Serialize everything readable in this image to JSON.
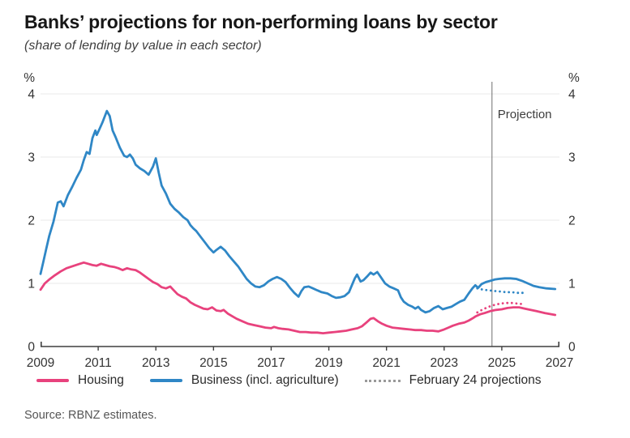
{
  "title": "Banks’ projections for non-performing loans by sector",
  "subtitle": "(share of lending by value in each sector)",
  "source": "Source: RBNZ estimates.",
  "projection_label": "Projection",
  "legend": [
    {
      "label": "Housing",
      "color": "#e8427d",
      "style": "solid"
    },
    {
      "label": "Business (incl. agriculture)",
      "color": "#2f87c6",
      "style": "solid"
    },
    {
      "label": "February 24 projections",
      "color": "#999999",
      "style": "dotted"
    }
  ],
  "colors": {
    "housing": "#e8427d",
    "business": "#2f87c6",
    "gridline": "#e8e8e8",
    "axis": "#3f3f3f",
    "projection_line": "#6e6e6e"
  },
  "chart_data": {
    "type": "line",
    "title": "Banks’ projections for non-performing loans by sector",
    "subtitle": "(share of lending by value in each sector)",
    "ylabel": "%",
    "ylabel_right": "%",
    "ylim": [
      0,
      4
    ],
    "yticks": [
      0,
      1,
      2,
      3,
      4
    ],
    "xlim": [
      2009,
      2027
    ],
    "xticks": [
      2009,
      2011,
      2013,
      2015,
      2017,
      2019,
      2021,
      2023,
      2025,
      2027
    ],
    "grid": true,
    "legend_position": "bottom",
    "projection_start": 2024.66,
    "series": [
      {
        "name": "Business (incl. agriculture)",
        "color": "#2f87c6",
        "style": "solid",
        "points": [
          [
            2009.0,
            1.15
          ],
          [
            2009.1,
            1.35
          ],
          [
            2009.2,
            1.55
          ],
          [
            2009.3,
            1.75
          ],
          [
            2009.45,
            1.98
          ],
          [
            2009.6,
            2.28
          ],
          [
            2009.7,
            2.3
          ],
          [
            2009.8,
            2.22
          ],
          [
            2009.95,
            2.4
          ],
          [
            2010.1,
            2.53
          ],
          [
            2010.25,
            2.67
          ],
          [
            2010.4,
            2.8
          ],
          [
            2010.5,
            2.95
          ],
          [
            2010.6,
            3.08
          ],
          [
            2010.7,
            3.05
          ],
          [
            2010.8,
            3.3
          ],
          [
            2010.9,
            3.42
          ],
          [
            2010.95,
            3.35
          ],
          [
            2011.05,
            3.45
          ],
          [
            2011.15,
            3.55
          ],
          [
            2011.3,
            3.73
          ],
          [
            2011.4,
            3.65
          ],
          [
            2011.5,
            3.42
          ],
          [
            2011.6,
            3.32
          ],
          [
            2011.75,
            3.15
          ],
          [
            2011.9,
            3.02
          ],
          [
            2012.0,
            3.0
          ],
          [
            2012.1,
            3.04
          ],
          [
            2012.2,
            2.98
          ],
          [
            2012.3,
            2.88
          ],
          [
            2012.45,
            2.82
          ],
          [
            2012.6,
            2.78
          ],
          [
            2012.75,
            2.72
          ],
          [
            2012.9,
            2.85
          ],
          [
            2013.0,
            2.98
          ],
          [
            2013.1,
            2.75
          ],
          [
            2013.2,
            2.55
          ],
          [
            2013.35,
            2.42
          ],
          [
            2013.5,
            2.26
          ],
          [
            2013.65,
            2.18
          ],
          [
            2013.8,
            2.12
          ],
          [
            2013.95,
            2.05
          ],
          [
            2014.1,
            2.0
          ],
          [
            2014.2,
            1.92
          ],
          [
            2014.3,
            1.87
          ],
          [
            2014.4,
            1.83
          ],
          [
            2014.55,
            1.74
          ],
          [
            2014.7,
            1.65
          ],
          [
            2014.85,
            1.56
          ],
          [
            2015.0,
            1.49
          ],
          [
            2015.1,
            1.53
          ],
          [
            2015.25,
            1.58
          ],
          [
            2015.4,
            1.52
          ],
          [
            2015.55,
            1.43
          ],
          [
            2015.7,
            1.35
          ],
          [
            2015.85,
            1.27
          ],
          [
            2016.0,
            1.17
          ],
          [
            2016.15,
            1.07
          ],
          [
            2016.3,
            1.0
          ],
          [
            2016.45,
            0.95
          ],
          [
            2016.6,
            0.94
          ],
          [
            2016.75,
            0.97
          ],
          [
            2016.9,
            1.03
          ],
          [
            2017.05,
            1.07
          ],
          [
            2017.2,
            1.1
          ],
          [
            2017.35,
            1.07
          ],
          [
            2017.5,
            1.02
          ],
          [
            2017.65,
            0.93
          ],
          [
            2017.8,
            0.85
          ],
          [
            2017.95,
            0.79
          ],
          [
            2018.05,
            0.88
          ],
          [
            2018.15,
            0.94
          ],
          [
            2018.3,
            0.95
          ],
          [
            2018.45,
            0.92
          ],
          [
            2018.6,
            0.89
          ],
          [
            2018.75,
            0.86
          ],
          [
            2018.95,
            0.84
          ],
          [
            2019.1,
            0.8
          ],
          [
            2019.25,
            0.77
          ],
          [
            2019.4,
            0.78
          ],
          [
            2019.55,
            0.8
          ],
          [
            2019.7,
            0.86
          ],
          [
            2019.8,
            0.97
          ],
          [
            2019.9,
            1.08
          ],
          [
            2019.98,
            1.14
          ],
          [
            2020.1,
            1.03
          ],
          [
            2020.2,
            1.05
          ],
          [
            2020.35,
            1.12
          ],
          [
            2020.45,
            1.17
          ],
          [
            2020.55,
            1.14
          ],
          [
            2020.68,
            1.18
          ],
          [
            2020.8,
            1.1
          ],
          [
            2020.95,
            1.0
          ],
          [
            2021.1,
            0.95
          ],
          [
            2021.25,
            0.92
          ],
          [
            2021.4,
            0.89
          ],
          [
            2021.5,
            0.78
          ],
          [
            2021.6,
            0.71
          ],
          [
            2021.75,
            0.66
          ],
          [
            2021.9,
            0.63
          ],
          [
            2022.0,
            0.6
          ],
          [
            2022.1,
            0.63
          ],
          [
            2022.2,
            0.58
          ],
          [
            2022.35,
            0.54
          ],
          [
            2022.5,
            0.56
          ],
          [
            2022.65,
            0.61
          ],
          [
            2022.8,
            0.64
          ],
          [
            2022.95,
            0.59
          ],
          [
            2023.1,
            0.61
          ],
          [
            2023.25,
            0.63
          ],
          [
            2023.4,
            0.67
          ],
          [
            2023.55,
            0.71
          ],
          [
            2023.7,
            0.74
          ],
          [
            2023.85,
            0.84
          ],
          [
            2023.98,
            0.92
          ],
          [
            2024.08,
            0.97
          ],
          [
            2024.18,
            0.93
          ],
          [
            2024.3,
            0.99
          ],
          [
            2024.45,
            1.02
          ],
          [
            2024.6,
            1.04
          ],
          [
            2024.75,
            1.06
          ],
          [
            2024.9,
            1.07
          ],
          [
            2025.1,
            1.08
          ],
          [
            2025.3,
            1.08
          ],
          [
            2025.5,
            1.07
          ],
          [
            2025.7,
            1.04
          ],
          [
            2025.9,
            1.0
          ],
          [
            2026.1,
            0.96
          ],
          [
            2026.3,
            0.94
          ],
          [
            2026.55,
            0.92
          ],
          [
            2026.85,
            0.91
          ]
        ]
      },
      {
        "name": "Housing",
        "color": "#e8427d",
        "style": "solid",
        "points": [
          [
            2009.0,
            0.9
          ],
          [
            2009.15,
            1.0
          ],
          [
            2009.3,
            1.06
          ],
          [
            2009.5,
            1.13
          ],
          [
            2009.7,
            1.19
          ],
          [
            2009.9,
            1.24
          ],
          [
            2010.1,
            1.27
          ],
          [
            2010.3,
            1.3
          ],
          [
            2010.5,
            1.33
          ],
          [
            2010.65,
            1.31
          ],
          [
            2010.8,
            1.29
          ],
          [
            2010.95,
            1.28
          ],
          [
            2011.1,
            1.31
          ],
          [
            2011.25,
            1.29
          ],
          [
            2011.4,
            1.27
          ],
          [
            2011.55,
            1.26
          ],
          [
            2011.7,
            1.24
          ],
          [
            2011.85,
            1.21
          ],
          [
            2012.0,
            1.24
          ],
          [
            2012.15,
            1.22
          ],
          [
            2012.3,
            1.21
          ],
          [
            2012.45,
            1.17
          ],
          [
            2012.6,
            1.12
          ],
          [
            2012.75,
            1.07
          ],
          [
            2012.9,
            1.02
          ],
          [
            2013.05,
            0.99
          ],
          [
            2013.2,
            0.94
          ],
          [
            2013.35,
            0.92
          ],
          [
            2013.5,
            0.95
          ],
          [
            2013.6,
            0.9
          ],
          [
            2013.75,
            0.83
          ],
          [
            2013.9,
            0.79
          ],
          [
            2014.05,
            0.76
          ],
          [
            2014.2,
            0.7
          ],
          [
            2014.35,
            0.66
          ],
          [
            2014.5,
            0.63
          ],
          [
            2014.65,
            0.6
          ],
          [
            2014.8,
            0.59
          ],
          [
            2014.95,
            0.62
          ],
          [
            2015.1,
            0.57
          ],
          [
            2015.25,
            0.56
          ],
          [
            2015.35,
            0.58
          ],
          [
            2015.5,
            0.52
          ],
          [
            2015.65,
            0.48
          ],
          [
            2015.8,
            0.44
          ],
          [
            2016.0,
            0.4
          ],
          [
            2016.2,
            0.36
          ],
          [
            2016.4,
            0.34
          ],
          [
            2016.6,
            0.32
          ],
          [
            2016.8,
            0.3
          ],
          [
            2017.0,
            0.29
          ],
          [
            2017.1,
            0.31
          ],
          [
            2017.25,
            0.29
          ],
          [
            2017.4,
            0.28
          ],
          [
            2017.6,
            0.27
          ],
          [
            2017.8,
            0.25
          ],
          [
            2018.0,
            0.23
          ],
          [
            2018.2,
            0.23
          ],
          [
            2018.4,
            0.22
          ],
          [
            2018.6,
            0.22
          ],
          [
            2018.8,
            0.21
          ],
          [
            2019.0,
            0.22
          ],
          [
            2019.2,
            0.23
          ],
          [
            2019.4,
            0.24
          ],
          [
            2019.6,
            0.25
          ],
          [
            2019.8,
            0.27
          ],
          [
            2020.0,
            0.29
          ],
          [
            2020.15,
            0.32
          ],
          [
            2020.3,
            0.38
          ],
          [
            2020.45,
            0.44
          ],
          [
            2020.55,
            0.45
          ],
          [
            2020.7,
            0.4
          ],
          [
            2020.85,
            0.36
          ],
          [
            2021.0,
            0.33
          ],
          [
            2021.2,
            0.3
          ],
          [
            2021.4,
            0.29
          ],
          [
            2021.6,
            0.28
          ],
          [
            2021.8,
            0.27
          ],
          [
            2022.0,
            0.26
          ],
          [
            2022.2,
            0.26
          ],
          [
            2022.4,
            0.25
          ],
          [
            2022.6,
            0.25
          ],
          [
            2022.8,
            0.24
          ],
          [
            2023.0,
            0.27
          ],
          [
            2023.15,
            0.3
          ],
          [
            2023.3,
            0.33
          ],
          [
            2023.5,
            0.36
          ],
          [
            2023.7,
            0.38
          ],
          [
            2023.85,
            0.41
          ],
          [
            2024.0,
            0.45
          ],
          [
            2024.1,
            0.48
          ],
          [
            2024.25,
            0.51
          ],
          [
            2024.4,
            0.53
          ],
          [
            2024.6,
            0.56
          ],
          [
            2024.8,
            0.58
          ],
          [
            2025.0,
            0.59
          ],
          [
            2025.2,
            0.61
          ],
          [
            2025.4,
            0.62
          ],
          [
            2025.6,
            0.62
          ],
          [
            2025.8,
            0.6
          ],
          [
            2026.0,
            0.58
          ],
          [
            2026.2,
            0.56
          ],
          [
            2026.5,
            0.53
          ],
          [
            2026.85,
            0.5
          ]
        ]
      },
      {
        "name": "Business (February 24 projections)",
        "color": "#2f87c6",
        "style": "dotted",
        "points": [
          [
            2024.15,
            0.92
          ],
          [
            2024.35,
            0.9
          ],
          [
            2024.55,
            0.89
          ],
          [
            2024.75,
            0.88
          ],
          [
            2024.95,
            0.87
          ],
          [
            2025.15,
            0.86
          ],
          [
            2025.35,
            0.86
          ],
          [
            2025.55,
            0.85
          ],
          [
            2025.75,
            0.85
          ]
        ]
      },
      {
        "name": "Housing (February 24 projections)",
        "color": "#e8427d",
        "style": "dotted",
        "points": [
          [
            2024.15,
            0.54
          ],
          [
            2024.35,
            0.59
          ],
          [
            2024.55,
            0.63
          ],
          [
            2024.75,
            0.66
          ],
          [
            2024.95,
            0.68
          ],
          [
            2025.15,
            0.69
          ],
          [
            2025.35,
            0.69
          ],
          [
            2025.55,
            0.68
          ],
          [
            2025.75,
            0.67
          ]
        ]
      }
    ]
  }
}
